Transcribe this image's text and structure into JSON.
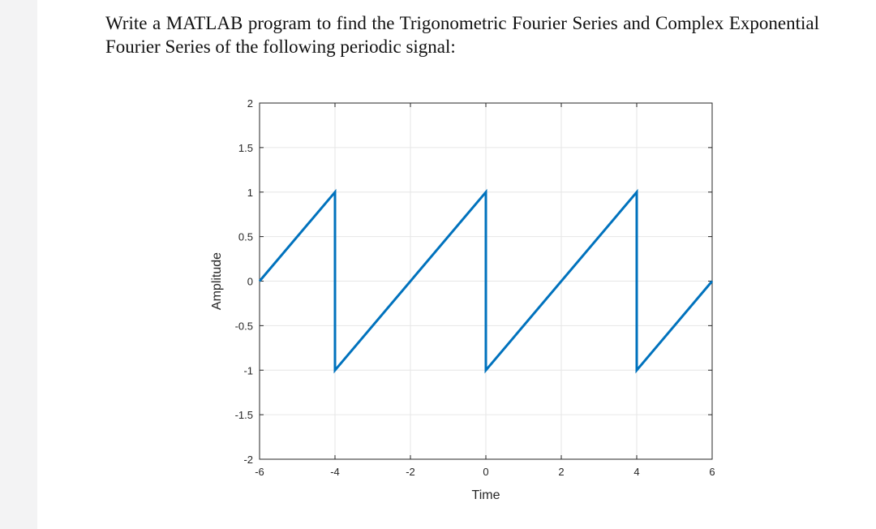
{
  "question": {
    "text": "Write a MATLAB program to find the Trigonometric Fourier Series and Complex Exponential Fourier Series of the following periodic signal:"
  },
  "chart_data": {
    "type": "line",
    "xlabel": "Time",
    "ylabel": "Amplitude",
    "xlim": [
      -6,
      6
    ],
    "ylim": [
      -2,
      2
    ],
    "xticks": [
      "-6",
      "-4",
      "-2",
      "0",
      "2",
      "4",
      "6"
    ],
    "yticks": [
      "2",
      "1.5",
      "1",
      "0.5",
      "0",
      "-0.5",
      "-1",
      "-1.5",
      "-2"
    ],
    "grid": true,
    "line_color": "#0072BD",
    "series": [
      {
        "x": [
          -6,
          -4,
          -4,
          0,
          0,
          4,
          4,
          6
        ],
        "y": [
          0,
          1,
          -1,
          1,
          -1,
          1,
          -1,
          0
        ]
      }
    ]
  }
}
